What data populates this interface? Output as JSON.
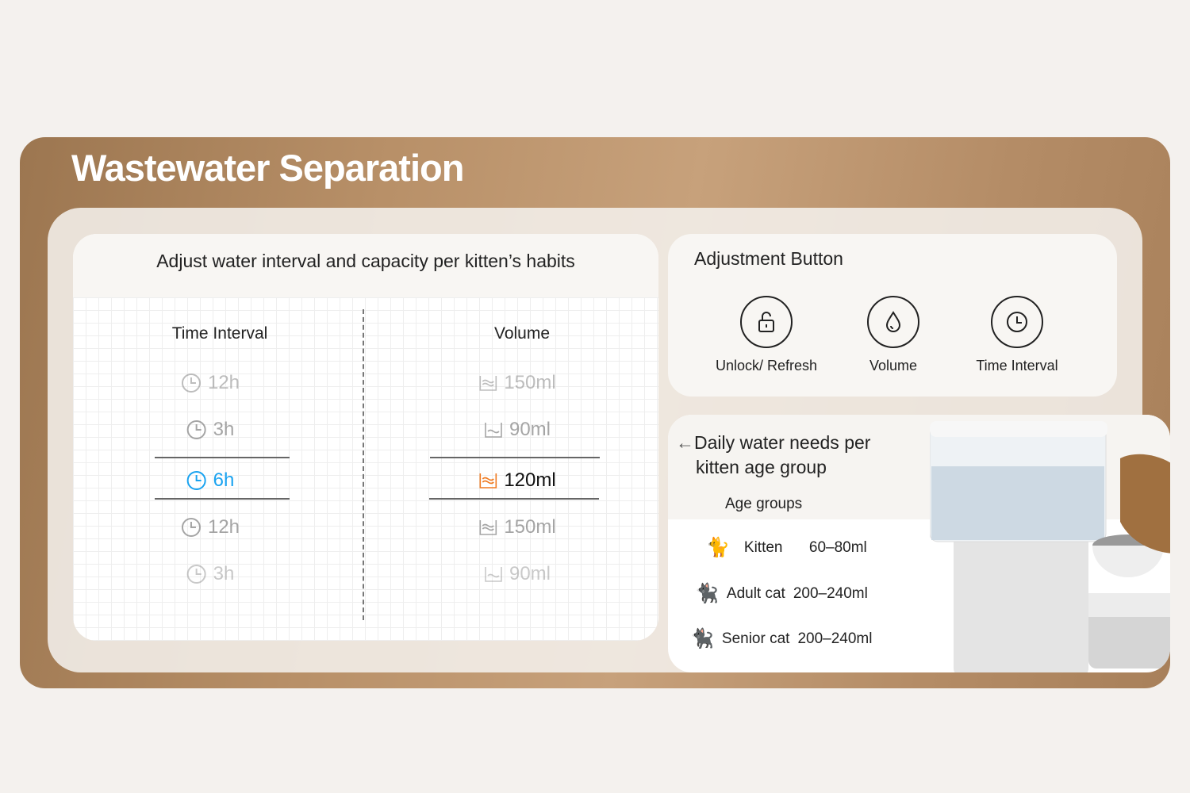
{
  "title": "Wastewater Separation",
  "left_card": {
    "heading": "Adjust water interval and capacity per kitten’s habits",
    "time_header": "Time Interval",
    "volume_header": "Volume",
    "time_items": [
      "12h",
      "3h",
      "6h",
      "12h",
      "3h"
    ],
    "volume_items": [
      "150ml",
      "90ml",
      "120ml",
      "150ml",
      "90ml"
    ],
    "selected_index": 2,
    "colors": {
      "time_selected": "#1aa3f0",
      "volume_selected_icon": "#f07a20"
    }
  },
  "adjust_card": {
    "heading": "Adjustment Button",
    "buttons": [
      {
        "label": "Unlock/ Refresh",
        "icon": "unlock-icon"
      },
      {
        "label": "Volume",
        "icon": "water-drop-icon"
      },
      {
        "label": "Time Interval",
        "icon": "clock-icon"
      }
    ]
  },
  "needs_card": {
    "heading_line1": "Daily water needs per",
    "heading_line2": "kitten age group",
    "arrow": "←",
    "age_label": "Age groups",
    "groups": [
      {
        "name": "Kitten",
        "amount": "60–80ml"
      },
      {
        "name": "Adult cat",
        "amount": "200–240ml"
      },
      {
        "name": "Senior cat",
        "amount": "200–240ml"
      }
    ]
  }
}
